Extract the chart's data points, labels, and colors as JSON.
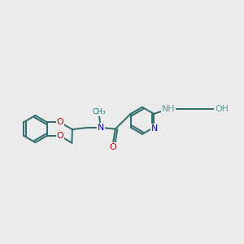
{
  "bg_color": "#ebebeb",
  "bond_color": "#2d6b6b",
  "o_color": "#cc0000",
  "n_color": "#0000cc",
  "nh_color": "#5d9999",
  "line_width": 1.4,
  "dbl_sep": 0.09,
  "figsize": [
    3.0,
    3.0
  ],
  "dpi": 100,
  "xlim": [
    0,
    10.5
  ],
  "ylim": [
    2.5,
    8.5
  ],
  "font_size_atom": 7.8,
  "font_size_small": 6.5
}
